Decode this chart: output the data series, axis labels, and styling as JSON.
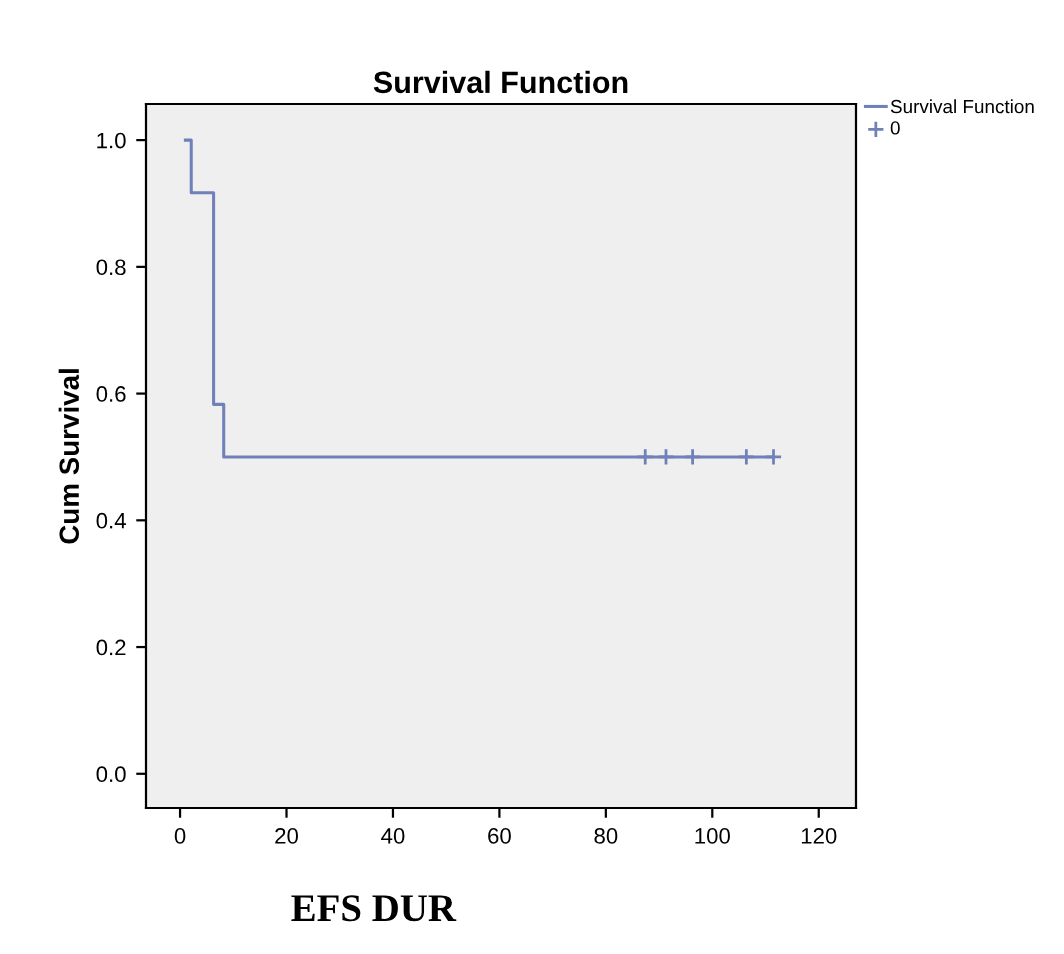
{
  "chart_data": {
    "type": "step",
    "title": "Survival Function",
    "xlabel": "EFS DUR",
    "ylabel": "Cum Survival",
    "xlim": [
      -6.4,
      127
    ],
    "ylim": [
      -0.054,
      1.057
    ],
    "xticks": [
      0,
      20,
      40,
      60,
      80,
      100,
      120
    ],
    "yticks": [
      {
        "value": 0,
        "label": "0.0"
      },
      0.2,
      0.4,
      0.6,
      0.8,
      {
        "value": 1,
        "label": "1.0"
      }
    ],
    "series": [
      {
        "name": "Survival Function",
        "color": "#7080b8",
        "x": [
          1,
          2.1,
          6.3,
          8.2,
          111.5
        ],
        "values": [
          1.0,
          0.917,
          0.583,
          0.5,
          0.5
        ]
      },
      {
        "name": "0",
        "type": "scatter",
        "marker": "cross",
        "color": "#7080b8",
        "x": [
          87.4,
          91.3,
          96.3,
          106.4,
          111.5
        ],
        "values": [
          0.5,
          0.5,
          0.5,
          0.5,
          0.5
        ]
      }
    ],
    "grid": false,
    "legend": "top right"
  }
}
